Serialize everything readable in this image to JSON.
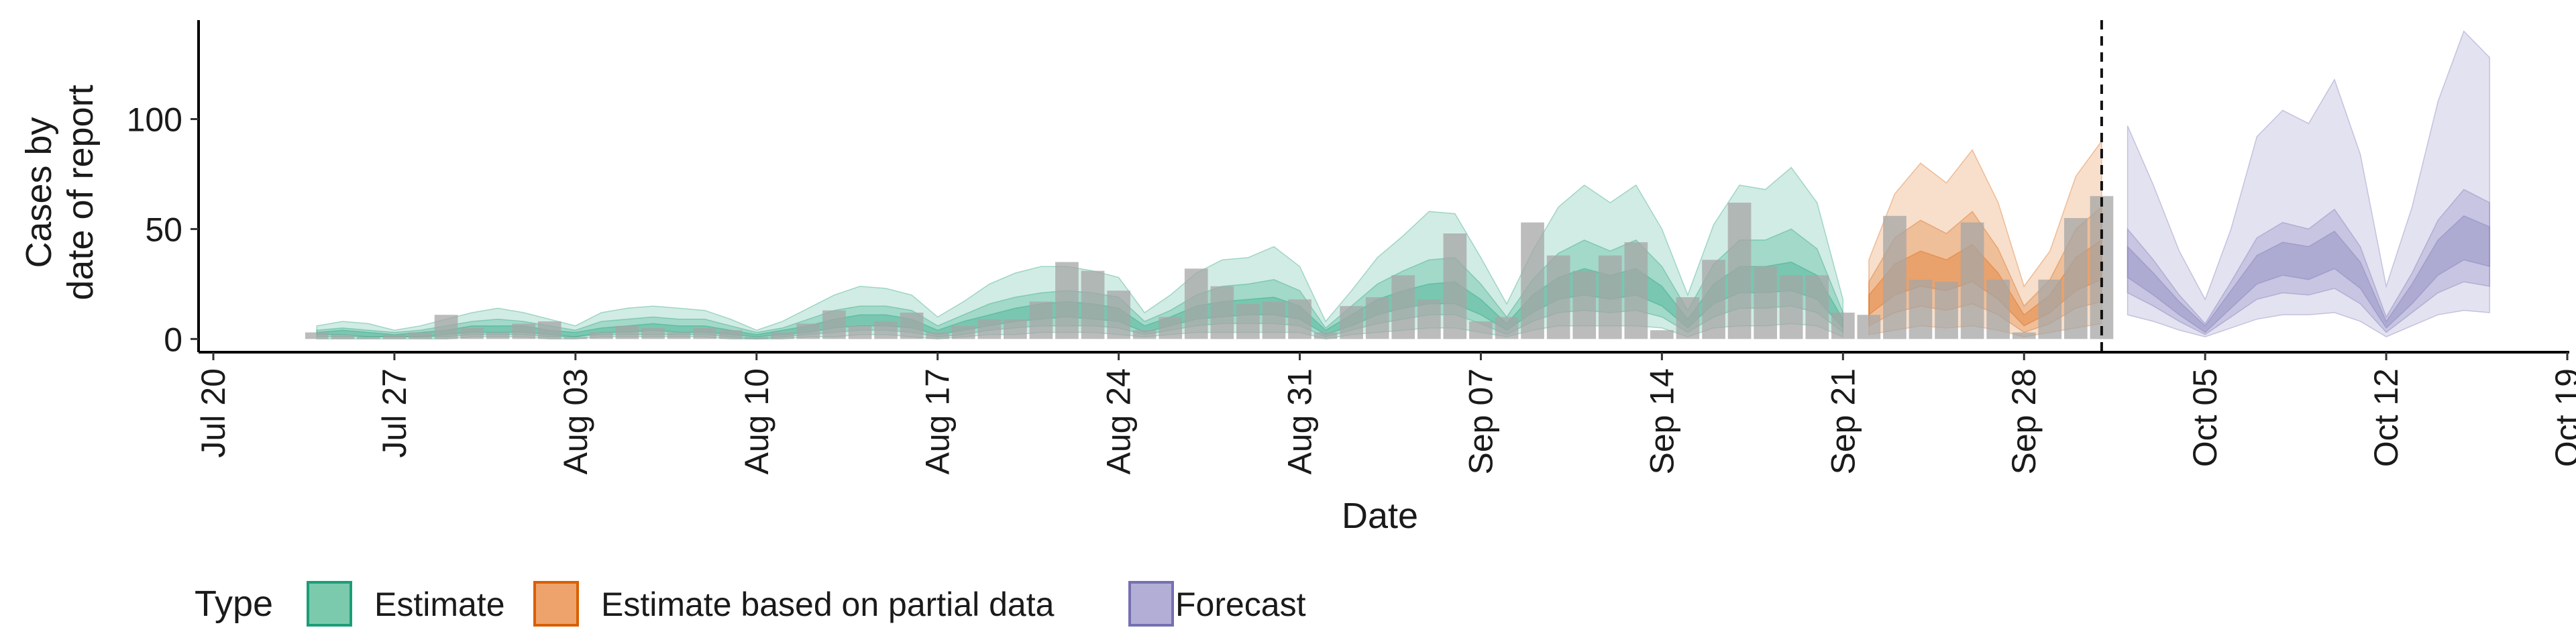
{
  "chart_data": {
    "type": "area",
    "xlabel": "Date",
    "ylabel_lines": [
      "Cases by",
      "date of report"
    ],
    "x_ticks": [
      "Jul 20",
      "Jul 27",
      "Aug 03",
      "Aug 10",
      "Aug 17",
      "Aug 24",
      "Aug 31",
      "Sep 07",
      "Sep 14",
      "Sep 21",
      "Sep 28",
      "Oct 05",
      "Oct 12",
      "Oct 19"
    ],
    "x_tick_dates": [
      "2020-07-20",
      "2020-07-27",
      "2020-08-03",
      "2020-08-10",
      "2020-08-17",
      "2020-08-24",
      "2020-08-31",
      "2020-09-07",
      "2020-09-14",
      "2020-09-21",
      "2020-09-28",
      "2020-10-05",
      "2020-10-12",
      "2020-10-19"
    ],
    "xlim": [
      "2020-07-20",
      "2020-10-19"
    ],
    "y_ticks": [
      0,
      50,
      100
    ],
    "ylim": [
      -6,
      145
    ],
    "grid": false,
    "legend_position": "bottom-left",
    "legend": {
      "title": "Type",
      "items": [
        {
          "label": "Estimate",
          "fill": "#7ccaad",
          "stroke": "#1b9e77"
        },
        {
          "label": "Estimate based on partial data",
          "fill": "#eda36b",
          "stroke": "#d95f02"
        },
        {
          "label": "Forecast",
          "fill": "#b2aed5",
          "stroke": "#7570b3"
        }
      ]
    },
    "vline_date": "2020-10-01",
    "bar_color": "#a6a6a6",
    "observed_cases": {
      "dates": [
        "2020-07-24",
        "2020-07-25",
        "2020-07-26",
        "2020-07-27",
        "2020-07-28",
        "2020-07-29",
        "2020-07-30",
        "2020-07-31",
        "2020-08-01",
        "2020-08-02",
        "2020-08-03",
        "2020-08-04",
        "2020-08-05",
        "2020-08-06",
        "2020-08-07",
        "2020-08-08",
        "2020-08-09",
        "2020-08-10",
        "2020-08-11",
        "2020-08-12",
        "2020-08-13",
        "2020-08-14",
        "2020-08-15",
        "2020-08-16",
        "2020-08-17",
        "2020-08-18",
        "2020-08-19",
        "2020-08-20",
        "2020-08-21",
        "2020-08-22",
        "2020-08-23",
        "2020-08-24",
        "2020-08-25",
        "2020-08-26",
        "2020-08-27",
        "2020-08-28",
        "2020-08-29",
        "2020-08-30",
        "2020-08-31",
        "2020-09-01",
        "2020-09-02",
        "2020-09-03",
        "2020-09-04",
        "2020-09-05",
        "2020-09-06",
        "2020-09-07",
        "2020-09-08",
        "2020-09-09",
        "2020-09-10",
        "2020-09-11",
        "2020-09-12",
        "2020-09-13",
        "2020-09-14",
        "2020-09-15",
        "2020-09-16",
        "2020-09-17",
        "2020-09-18",
        "2020-09-19",
        "2020-09-20",
        "2020-09-21",
        "2020-09-22",
        "2020-09-23",
        "2020-09-24",
        "2020-09-25",
        "2020-09-26",
        "2020-09-27",
        "2020-09-28",
        "2020-09-29",
        "2020-09-30",
        "2020-10-01"
      ],
      "values": [
        3,
        2,
        1,
        2,
        3,
        11,
        5,
        3,
        7,
        8,
        1,
        3,
        6,
        5,
        3,
        5,
        4,
        1,
        3,
        7,
        13,
        6,
        8,
        12,
        3,
        6,
        9,
        9,
        17,
        35,
        31,
        22,
        4,
        10,
        32,
        24,
        16,
        17,
        18,
        3,
        15,
        19,
        29,
        18,
        48,
        8,
        10,
        53,
        38,
        31,
        38,
        44,
        4,
        19,
        36,
        62,
        33,
        29,
        29,
        12,
        11,
        56,
        27,
        26,
        53,
        27,
        3,
        27,
        55,
        65
      ]
    },
    "series": [
      {
        "name": "Estimate",
        "color": "#1b9e77",
        "dates": [
          "2020-07-24",
          "2020-07-25",
          "2020-07-26",
          "2020-07-27",
          "2020-07-28",
          "2020-07-29",
          "2020-07-30",
          "2020-07-31",
          "2020-08-01",
          "2020-08-02",
          "2020-08-03",
          "2020-08-04",
          "2020-08-05",
          "2020-08-06",
          "2020-08-07",
          "2020-08-08",
          "2020-08-09",
          "2020-08-10",
          "2020-08-11",
          "2020-08-12",
          "2020-08-13",
          "2020-08-14",
          "2020-08-15",
          "2020-08-16",
          "2020-08-17",
          "2020-08-18",
          "2020-08-19",
          "2020-08-20",
          "2020-08-21",
          "2020-08-22",
          "2020-08-23",
          "2020-08-24",
          "2020-08-25",
          "2020-08-26",
          "2020-08-27",
          "2020-08-28",
          "2020-08-29",
          "2020-08-30",
          "2020-08-31",
          "2020-09-01",
          "2020-09-02",
          "2020-09-03",
          "2020-09-04",
          "2020-09-05",
          "2020-09-06",
          "2020-09-07",
          "2020-09-08",
          "2020-09-09",
          "2020-09-10",
          "2020-09-11",
          "2020-09-12",
          "2020-09-13",
          "2020-09-14",
          "2020-09-15",
          "2020-09-16",
          "2020-09-17",
          "2020-09-18",
          "2020-09-19",
          "2020-09-20",
          "2020-09-21"
        ],
        "outer_upper": [
          6,
          8,
          7,
          4,
          6,
          9,
          12,
          14,
          12,
          9,
          6,
          12,
          14,
          15,
          14,
          13,
          9,
          4,
          8,
          14,
          20,
          24,
          23,
          20,
          10,
          17,
          25,
          30,
          33,
          33,
          31,
          28,
          12,
          20,
          30,
          36,
          37,
          42,
          33,
          8,
          22,
          37,
          47,
          58,
          57,
          37,
          16,
          40,
          60,
          70,
          62,
          70,
          50,
          20,
          52,
          70,
          68,
          78,
          62,
          18
        ],
        "mid_upper": [
          4,
          5,
          4,
          3,
          4,
          6,
          8,
          9,
          8,
          6,
          4,
          8,
          9,
          10,
          9,
          9,
          6,
          3,
          5,
          9,
          13,
          15,
          15,
          13,
          6,
          11,
          16,
          19,
          21,
          22,
          21,
          19,
          8,
          13,
          20,
          24,
          25,
          27,
          22,
          5,
          15,
          25,
          31,
          36,
          37,
          25,
          10,
          27,
          39,
          45,
          40,
          45,
          33,
          13,
          34,
          45,
          45,
          50,
          41,
          12
        ],
        "inner_upper": [
          3,
          4,
          3,
          2,
          3,
          4,
          6,
          6,
          6,
          4,
          3,
          5,
          6,
          7,
          6,
          6,
          4,
          2,
          4,
          6,
          9,
          11,
          11,
          9,
          4,
          8,
          11,
          14,
          16,
          17,
          16,
          14,
          6,
          10,
          15,
          17,
          18,
          19,
          15,
          4,
          11,
          18,
          22,
          25,
          26,
          18,
          7,
          20,
          28,
          32,
          29,
          32,
          24,
          9,
          25,
          33,
          33,
          35,
          29,
          9
        ],
        "inner_lower": [
          2,
          2,
          1,
          1,
          1,
          2,
          3,
          3,
          3,
          2,
          1,
          3,
          3,
          4,
          3,
          3,
          2,
          1,
          2,
          3,
          5,
          6,
          6,
          5,
          2,
          4,
          6,
          8,
          9,
          10,
          9,
          8,
          3,
          6,
          9,
          10,
          11,
          11,
          9,
          2,
          6,
          11,
          14,
          16,
          16,
          11,
          4,
          12,
          18,
          20,
          18,
          20,
          15,
          5,
          16,
          21,
          21,
          22,
          18,
          5
        ],
        "mid_lower": [
          1,
          1,
          1,
          1,
          1,
          1,
          2,
          2,
          2,
          1,
          1,
          2,
          2,
          2,
          2,
          2,
          1,
          0,
          1,
          2,
          3,
          4,
          4,
          3,
          1,
          2,
          4,
          5,
          6,
          6,
          6,
          5,
          2,
          4,
          6,
          7,
          7,
          7,
          6,
          1,
          4,
          7,
          9,
          11,
          11,
          7,
          2,
          8,
          12,
          13,
          12,
          13,
          10,
          3,
          10,
          14,
          14,
          15,
          12,
          3
        ],
        "outer_lower": [
          0,
          0,
          0,
          0,
          0,
          0,
          1,
          1,
          1,
          0,
          0,
          1,
          1,
          1,
          1,
          1,
          0,
          0,
          0,
          1,
          1,
          2,
          2,
          1,
          0,
          1,
          2,
          2,
          3,
          3,
          3,
          2,
          1,
          2,
          3,
          3,
          3,
          3,
          3,
          0,
          2,
          3,
          4,
          5,
          5,
          3,
          1,
          4,
          6,
          6,
          6,
          6,
          5,
          1,
          5,
          6,
          6,
          7,
          6,
          1
        ]
      },
      {
        "name": "Estimate based on partial data",
        "color": "#d95f02",
        "dates": [
          "2020-09-22",
          "2020-09-23",
          "2020-09-24",
          "2020-09-25",
          "2020-09-26",
          "2020-09-27",
          "2020-09-28",
          "2020-09-29",
          "2020-09-30",
          "2020-10-01"
        ],
        "outer_upper": [
          36,
          66,
          80,
          71,
          86,
          62,
          24,
          40,
          74,
          90
        ],
        "mid_upper": [
          26,
          46,
          54,
          48,
          58,
          41,
          15,
          27,
          50,
          60
        ],
        "inner_upper": [
          20,
          34,
          40,
          36,
          43,
          30,
          11,
          20,
          37,
          45
        ],
        "inner_lower": [
          11,
          20,
          24,
          22,
          26,
          18,
          6,
          12,
          22,
          27
        ],
        "mid_lower": [
          6,
          12,
          15,
          13,
          16,
          11,
          3,
          7,
          14,
          17
        ],
        "outer_lower": [
          2,
          4,
          6,
          5,
          6,
          4,
          1,
          3,
          5,
          7
        ]
      },
      {
        "name": "Forecast",
        "color": "#7570b3",
        "dates": [
          "2020-10-02",
          "2020-10-03",
          "2020-10-04",
          "2020-10-05",
          "2020-10-06",
          "2020-10-07",
          "2020-10-08",
          "2020-10-09",
          "2020-10-10",
          "2020-10-11",
          "2020-10-12",
          "2020-10-13",
          "2020-10-14",
          "2020-10-15",
          "2020-10-16"
        ],
        "outer_upper": [
          97,
          70,
          40,
          18,
          50,
          92,
          104,
          98,
          118,
          84,
          24,
          60,
          108,
          140,
          128
        ],
        "mid_upper": [
          50,
          36,
          20,
          7,
          26,
          46,
          53,
          50,
          59,
          42,
          10,
          30,
          54,
          68,
          62
        ],
        "inner_upper": [
          42,
          30,
          17,
          6,
          22,
          38,
          44,
          42,
          49,
          35,
          8,
          25,
          45,
          56,
          51
        ],
        "inner_lower": [
          28,
          20,
          11,
          3,
          14,
          25,
          29,
          27,
          32,
          23,
          5,
          16,
          29,
          36,
          33
        ],
        "mid_lower": [
          21,
          15,
          8,
          2,
          10,
          18,
          21,
          20,
          23,
          16,
          3,
          12,
          21,
          26,
          24
        ],
        "outer_lower": [
          11,
          8,
          4,
          1,
          5,
          9,
          11,
          11,
          12,
          8,
          1,
          6,
          11,
          13,
          12
        ]
      }
    ]
  }
}
